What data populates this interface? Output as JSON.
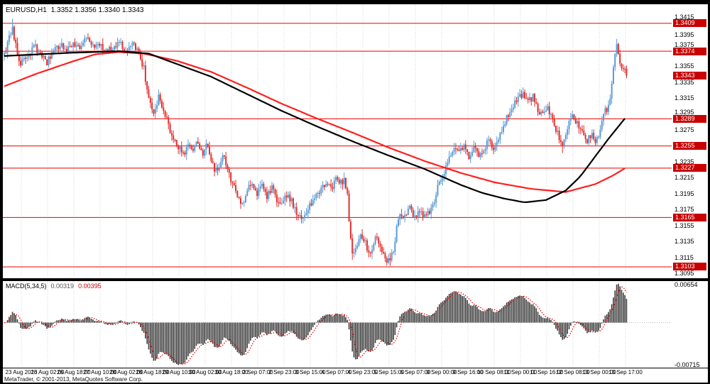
{
  "window": {
    "symbol_period": "EURUSD,H1",
    "quote_line": "1.3352 1.3356 1.3340 1.3343",
    "copyright": "MetaTrader, © 2001-2013, MetaQuotes Software Corp."
  },
  "colors": {
    "frame_bg": "#000000",
    "panel_bg": "#ffffff",
    "text": "#000000",
    "grid": "#d2d2d2",
    "bull": "#5b9bd5",
    "bear": "#e0302e",
    "ma_red": "#ff1f1f",
    "ma_black": "#000000",
    "level_line": "#ee0000",
    "badge_bg": "#c80000",
    "badge_text": "#ffffff",
    "macd_bar": "#3c3c3c",
    "macd_signal": "#dd0000"
  },
  "chart_data": {
    "type": "candlestick",
    "symbol": "EURUSD",
    "timeframe": "H1",
    "ohlc": {
      "open": 1.3352,
      "high": 1.3356,
      "low": 1.334,
      "close": 1.3343
    },
    "current_price": 1.3343,
    "price_axis": {
      "tick_labels": [
        "1.3415",
        "1.3395",
        "1.3375",
        "1.3355",
        "1.3335",
        "1.3315",
        "1.3295",
        "1.3275",
        "1.3255",
        "1.3235",
        "1.3215",
        "1.3195",
        "1.3175",
        "1.3155",
        "1.3135",
        "1.3115",
        "1.3095"
      ],
      "level_badges": [
        "1.3409",
        "1.3374",
        "1.3343",
        "1.3289",
        "1.3255",
        "1.3227",
        "1.3165",
        "1.3103"
      ]
    },
    "horizontal_levels": [
      1.3409,
      1.3374,
      1.3289,
      1.3255,
      1.3227,
      1.3165,
      1.3103
    ],
    "time_axis_labels": [
      "23 Aug 2013",
      "26 Aug 02:00",
      "26 Aug 18:00",
      "27 Aug 10:00",
      "28 Aug 02:00",
      "28 Aug 18:00",
      "29 Aug 10:00",
      "30 Aug 02:00",
      "30 Aug 18:00",
      "2 Sep 07:00",
      "2 Sep 23:00",
      "3 Sep 15:00",
      "4 Sep 07:00",
      "4 Sep 23:00",
      "5 Sep 15:00",
      "6 Sep 07:00",
      "9 Sep 00:00",
      "9 Sep 16:00",
      "10 Sep 08:00",
      "11 Sep 00:00",
      "11 Sep 16:00",
      "12 Sep 08:00",
      "13 Sep 00:00",
      "13 Sep 17:00"
    ],
    "candles_total": 380,
    "seed": 91313,
    "price_path_anchors": [
      [
        0,
        1.3368
      ],
      [
        3,
        1.3392
      ],
      [
        5,
        1.3402
      ],
      [
        7,
        1.338
      ],
      [
        10,
        1.3358
      ],
      [
        14,
        1.3365
      ],
      [
        18,
        1.3382
      ],
      [
        22,
        1.337
      ],
      [
        26,
        1.336
      ],
      [
        30,
        1.3372
      ],
      [
        34,
        1.3383
      ],
      [
        38,
        1.3375
      ],
      [
        42,
        1.3385
      ],
      [
        46,
        1.3378
      ],
      [
        50,
        1.339
      ],
      [
        54,
        1.3378
      ],
      [
        58,
        1.3385
      ],
      [
        62,
        1.3372
      ],
      [
        66,
        1.338
      ],
      [
        70,
        1.3386
      ],
      [
        74,
        1.3372
      ],
      [
        78,
        1.3382
      ],
      [
        82,
        1.3374
      ],
      [
        85,
        1.3352
      ],
      [
        88,
        1.3312
      ],
      [
        91,
        1.3292
      ],
      [
        94,
        1.3318
      ],
      [
        97,
        1.3302
      ],
      [
        100,
        1.3282
      ],
      [
        103,
        1.3262
      ],
      [
        106,
        1.3255
      ],
      [
        109,
        1.3243
      ],
      [
        112,
        1.326
      ],
      [
        115,
        1.3248
      ],
      [
        118,
        1.3262
      ],
      [
        121,
        1.3244
      ],
      [
        124,
        1.3258
      ],
      [
        127,
        1.323
      ],
      [
        130,
        1.3222
      ],
      [
        133,
        1.3244
      ],
      [
        136,
        1.3226
      ],
      [
        139,
        1.3208
      ],
      [
        142,
        1.3193
      ],
      [
        145,
        1.3183
      ],
      [
        148,
        1.3198
      ],
      [
        151,
        1.321
      ],
      [
        154,
        1.3196
      ],
      [
        157,
        1.3206
      ],
      [
        160,
        1.3192
      ],
      [
        163,
        1.3202
      ],
      [
        166,
        1.3188
      ],
      [
        169,
        1.318
      ],
      [
        172,
        1.3194
      ],
      [
        175,
        1.3186
      ],
      [
        178,
        1.3172
      ],
      [
        181,
        1.316
      ],
      [
        184,
        1.3172
      ],
      [
        187,
        1.3184
      ],
      [
        190,
        1.3192
      ],
      [
        193,
        1.32
      ],
      [
        196,
        1.3208
      ],
      [
        199,
        1.3202
      ],
      [
        202,
        1.3212
      ],
      [
        205,
        1.3208
      ],
      [
        207,
        1.3214
      ],
      [
        209,
        1.3192
      ],
      [
        210,
        1.316
      ],
      [
        211,
        1.3135
      ],
      [
        212,
        1.312
      ],
      [
        214,
        1.3128
      ],
      [
        217,
        1.3142
      ],
      [
        220,
        1.3132
      ],
      [
        223,
        1.312
      ],
      [
        226,
        1.314
      ],
      [
        229,
        1.3128
      ],
      [
        232,
        1.3114
      ],
      [
        235,
        1.3108
      ],
      [
        237,
        1.3125
      ],
      [
        239,
        1.315
      ],
      [
        241,
        1.3172
      ],
      [
        244,
        1.3165
      ],
      [
        247,
        1.3176
      ],
      [
        250,
        1.3164
      ],
      [
        253,
        1.3172
      ],
      [
        256,
        1.3166
      ],
      [
        259,
        1.3174
      ],
      [
        262,
        1.3188
      ],
      [
        265,
        1.321
      ],
      [
        268,
        1.3222
      ],
      [
        271,
        1.3238
      ],
      [
        274,
        1.3252
      ],
      [
        277,
        1.3246
      ],
      [
        280,
        1.3258
      ],
      [
        283,
        1.3242
      ],
      [
        286,
        1.3254
      ],
      [
        289,
        1.324
      ],
      [
        292,
        1.3252
      ],
      [
        295,
        1.3262
      ],
      [
        298,
        1.325
      ],
      [
        301,
        1.3266
      ],
      [
        304,
        1.328
      ],
      [
        307,
        1.3294
      ],
      [
        310,
        1.3306
      ],
      [
        313,
        1.3316
      ],
      [
        316,
        1.332
      ],
      [
        319,
        1.331
      ],
      [
        322,
        1.3318
      ],
      [
        325,
        1.3302
      ],
      [
        328,
        1.3292
      ],
      [
        331,
        1.3302
      ],
      [
        334,
        1.329
      ],
      [
        337,
        1.327
      ],
      [
        340,
        1.3252
      ],
      [
        343,
        1.3278
      ],
      [
        346,
        1.3292
      ],
      [
        349,
        1.3284
      ],
      [
        352,
        1.3272
      ],
      [
        355,
        1.3262
      ],
      [
        358,
        1.327
      ],
      [
        360,
        1.3256
      ],
      [
        362,
        1.327
      ],
      [
        364,
        1.3286
      ],
      [
        366,
        1.3298
      ],
      [
        368,
        1.3306
      ],
      [
        370,
        1.333
      ],
      [
        372,
        1.3372
      ],
      [
        373,
        1.338
      ],
      [
        375,
        1.3362
      ],
      [
        377,
        1.3352
      ],
      [
        379,
        1.3343
      ]
    ],
    "wick_extremes": [
      [
        5,
        "high",
        1.3415
      ],
      [
        130,
        "low",
        1.3218
      ],
      [
        212,
        "low",
        1.3112
      ],
      [
        235,
        "low",
        1.3104
      ],
      [
        340,
        "low",
        1.3246
      ],
      [
        373,
        "high",
        1.3385
      ]
    ],
    "ma_red_anchors": [
      [
        0,
        1.333
      ],
      [
        20,
        1.3346
      ],
      [
        40,
        1.336
      ],
      [
        55,
        1.337
      ],
      [
        70,
        1.3373
      ],
      [
        85,
        1.3371
      ],
      [
        105,
        1.3362
      ],
      [
        126,
        1.3348
      ],
      [
        148,
        1.3328
      ],
      [
        169,
        1.3308
      ],
      [
        191,
        1.3289
      ],
      [
        213,
        1.3271
      ],
      [
        234,
        1.3253
      ],
      [
        256,
        1.3236
      ],
      [
        278,
        1.3221
      ],
      [
        299,
        1.3209
      ],
      [
        321,
        1.3201
      ],
      [
        342,
        1.3197
      ],
      [
        360,
        1.3207
      ],
      [
        370,
        1.3217
      ],
      [
        379,
        1.3228
      ]
    ],
    "ma_black_anchors": [
      [
        0,
        1.3368
      ],
      [
        40,
        1.3372
      ],
      [
        70,
        1.3374
      ],
      [
        88,
        1.3371
      ],
      [
        105,
        1.3358
      ],
      [
        126,
        1.3342
      ],
      [
        148,
        1.332
      ],
      [
        169,
        1.3299
      ],
      [
        191,
        1.3279
      ],
      [
        213,
        1.326
      ],
      [
        234,
        1.3243
      ],
      [
        256,
        1.3226
      ],
      [
        278,
        1.3206
      ],
      [
        291,
        1.3196
      ],
      [
        304,
        1.3189
      ],
      [
        317,
        1.3184
      ],
      [
        330,
        1.3187
      ],
      [
        342,
        1.3199
      ],
      [
        351,
        1.3217
      ],
      [
        360,
        1.3242
      ],
      [
        368,
        1.3264
      ],
      [
        379,
        1.3292
      ]
    ]
  },
  "macd": {
    "label": "MACD(5,34,5)",
    "value": "0.00319",
    "signal": "0.00395",
    "axis_top": "0.00654",
    "axis_bottom": "-0.00715",
    "fast": 5,
    "slow": 34,
    "smoothing": 5
  }
}
